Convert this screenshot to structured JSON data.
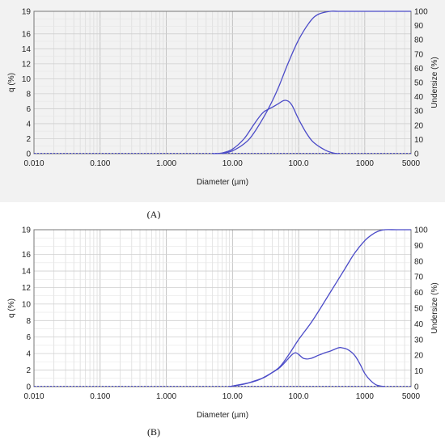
{
  "chart_data": [
    {
      "type": "line",
      "panel": "A",
      "xscale": "log",
      "xlim": [
        0.01,
        5000
      ],
      "ylim_left": [
        0,
        19
      ],
      "ylim_right": [
        0,
        100
      ],
      "x_tick_labels": [
        "0.010",
        "0.100",
        "1.000",
        "10.00",
        "100.0",
        "1000",
        "5000"
      ],
      "y_left_ticks": [
        0,
        2,
        4,
        6,
        8,
        10,
        12,
        14,
        16,
        19
      ],
      "y_right_ticks": [
        0,
        10,
        20,
        30,
        40,
        50,
        60,
        70,
        80,
        90,
        100
      ],
      "xlabel": "Diameter (µm)",
      "ylabel_left": "q (%)",
      "ylabel_right": "Undersize (%)",
      "grid": true,
      "background": "#f2f2f2",
      "line_color": "#4b4bc8",
      "series": [
        {
          "axis": "left",
          "x": [
            5,
            7,
            10,
            15,
            20,
            25,
            30,
            40,
            50,
            60,
            70,
            80,
            100,
            130,
            160,
            200,
            250,
            300,
            350,
            400
          ],
          "y": [
            0,
            0.1,
            0.6,
            2.0,
            3.6,
            4.8,
            5.6,
            6.2,
            6.7,
            7.1,
            7.0,
            6.4,
            4.6,
            2.8,
            1.7,
            1.0,
            0.5,
            0.2,
            0.05,
            0
          ]
        },
        {
          "axis": "right",
          "x": [
            7,
            10,
            15,
            20,
            30,
            40,
            50,
            70,
            100,
            150,
            200,
            300,
            400,
            1000,
            5000
          ],
          "y": [
            0,
            2,
            7,
            13,
            26,
            37,
            47,
            64,
            80,
            93,
            98,
            100,
            100,
            100,
            100
          ]
        }
      ]
    },
    {
      "type": "line",
      "panel": "B",
      "xscale": "log",
      "xlim": [
        0.01,
        5000
      ],
      "ylim_left": [
        0,
        19
      ],
      "ylim_right": [
        0,
        100
      ],
      "x_tick_labels": [
        "0.010",
        "0.100",
        "1.000",
        "10.00",
        "100.0",
        "1000",
        "5000"
      ],
      "y_left_ticks": [
        0,
        2,
        4,
        6,
        8,
        10,
        12,
        14,
        16,
        19
      ],
      "y_right_ticks": [
        0,
        10,
        20,
        30,
        40,
        50,
        60,
        70,
        80,
        90,
        100
      ],
      "xlabel": "Diameter (µm)",
      "ylabel_left": "q (%)",
      "ylabel_right": "Undersize (%)",
      "grid": true,
      "background": "#ffffff",
      "line_color": "#4b4bc8",
      "series": [
        {
          "axis": "left",
          "x": [
            9,
            15,
            20,
            30,
            40,
            50,
            60,
            70,
            80,
            90,
            100,
            120,
            150,
            200,
            250,
            300,
            400,
            450,
            550,
            700,
            850,
            1000,
            1200,
            1500,
            2000
          ],
          "y": [
            0,
            0.3,
            0.6,
            1.1,
            1.7,
            2.2,
            2.8,
            3.4,
            3.9,
            4.1,
            3.9,
            3.4,
            3.4,
            3.8,
            4.1,
            4.3,
            4.7,
            4.7,
            4.5,
            3.8,
            2.7,
            1.6,
            0.8,
            0.2,
            0
          ]
        },
        {
          "axis": "right",
          "x": [
            9,
            20,
            30,
            50,
            70,
            100,
            150,
            200,
            300,
            500,
            700,
            1000,
            1300,
            1600,
            2000,
            3000,
            5000
          ],
          "y": [
            0,
            3,
            6,
            12,
            20,
            30,
            40,
            48,
            60,
            75,
            85,
            93,
            97,
            99,
            100,
            100,
            100
          ]
        }
      ]
    }
  ],
  "captions": [
    "(A)",
    "(B)"
  ]
}
